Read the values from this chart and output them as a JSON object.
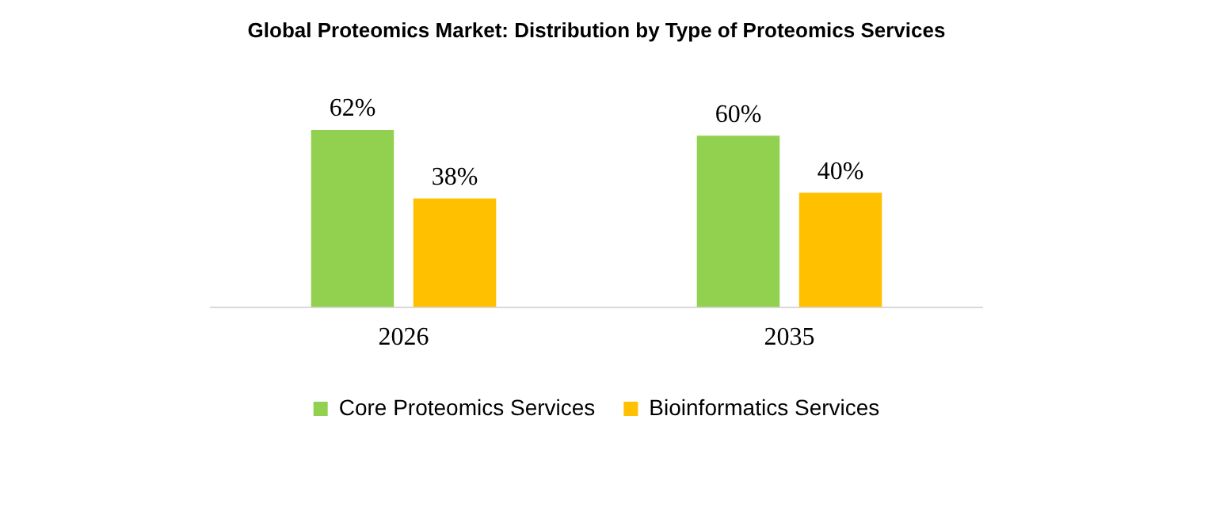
{
  "chart_data": {
    "type": "bar",
    "title": "Global Proteomics Market: Distribution by Type of Proteomics Services",
    "categories": [
      "2026",
      "2035"
    ],
    "series": [
      {
        "name": "Core Proteomics Services",
        "color": "#92d050",
        "values": [
          62,
          60
        ],
        "value_labels": [
          "62%",
          "60%"
        ]
      },
      {
        "name": "Bioinformatics Services",
        "color": "#ffc000",
        "values": [
          38,
          40
        ],
        "value_labels": [
          "38%",
          "40%"
        ]
      }
    ],
    "legend": "bottom",
    "grid": false
  }
}
